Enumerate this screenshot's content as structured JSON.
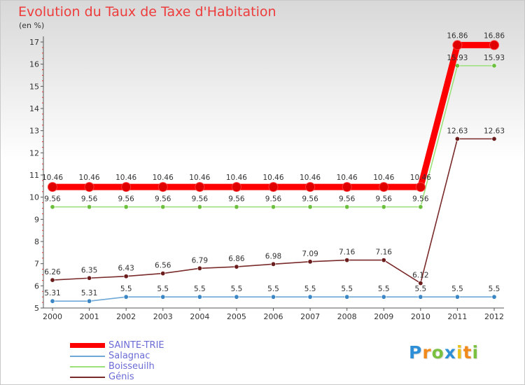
{
  "chart_data": {
    "type": "line",
    "title": "Evolution du Taux de Taxe d'Habitation",
    "subtitle": "(en %)",
    "xlabel": "",
    "ylabel": "",
    "ylim": [
      5,
      17
    ],
    "yticks": [
      "5",
      "6",
      "7",
      "8",
      "9",
      "10",
      "11",
      "12",
      "13",
      "14",
      "15",
      "16",
      "17"
    ],
    "categories": [
      "2000",
      "2001",
      "2002",
      "2003",
      "2004",
      "2005",
      "2006",
      "2007",
      "2008",
      "2009",
      "2010",
      "2011",
      "2012"
    ],
    "legend_position": "bottom-left",
    "series": [
      {
        "name": "SAINTE-TRIE",
        "color": "#ff0000",
        "point_color": "#e00000",
        "thick": true,
        "values": [
          10.46,
          10.46,
          10.46,
          10.46,
          10.46,
          10.46,
          10.46,
          10.46,
          10.46,
          10.46,
          10.46,
          16.86,
          16.86
        ],
        "labels": [
          "10.46",
          "10.46",
          "10.46",
          "10.46",
          "10.46",
          "10.46",
          "10.46",
          "10.46",
          "10.46",
          "10.46",
          "10.46",
          "16.86",
          "16.86"
        ]
      },
      {
        "name": "Salagnac",
        "color": "#6fa8d6",
        "point_color": "#3b86c5",
        "thick": false,
        "values": [
          5.31,
          5.31,
          5.5,
          5.5,
          5.5,
          5.5,
          5.5,
          5.5,
          5.5,
          5.5,
          5.5,
          5.5,
          5.5
        ],
        "labels": [
          "5.31",
          "5.31",
          "5.5",
          "5.5",
          "5.5",
          "5.5",
          "5.5",
          "5.5",
          "5.5",
          "5.5",
          "5.5",
          "5.5",
          "5.5"
        ]
      },
      {
        "name": "Boisseuilh",
        "color": "#9be07a",
        "point_color": "#6cc03e",
        "thick": false,
        "values": [
          9.56,
          9.56,
          9.56,
          9.56,
          9.56,
          9.56,
          9.56,
          9.56,
          9.56,
          9.56,
          9.56,
          15.93,
          15.93
        ],
        "labels": [
          "9.56",
          "9.56",
          "9.56",
          "9.56",
          "9.56",
          "9.56",
          "9.56",
          "9.56",
          "9.56",
          "9.56",
          "9.56",
          "15.93",
          "15.93"
        ]
      },
      {
        "name": "Génis",
        "color": "#7a2a2a",
        "point_color": "#6b1c1c",
        "thick": false,
        "values": [
          6.26,
          6.35,
          6.43,
          6.56,
          6.79,
          6.86,
          6.98,
          7.09,
          7.16,
          7.16,
          6.12,
          12.63,
          12.63
        ],
        "labels": [
          "6.26",
          "6.35",
          "6.43",
          "6.56",
          "6.79",
          "6.86",
          "6.98",
          "7.09",
          "7.16",
          "7.16",
          "6.12",
          "12.63",
          "12.63"
        ]
      }
    ]
  },
  "legend": {
    "items": [
      {
        "label": "SAINTE-TRIE",
        "color": "#ff0000",
        "text_color": "#6b6bd6"
      },
      {
        "label": "Salagnac",
        "color": "#6fa8d6",
        "text_color": "#6b6bd6"
      },
      {
        "label": "Boisseuilh",
        "color": "#9be07a",
        "text_color": "#6b6bd6"
      },
      {
        "label": "Génis",
        "color": "#7a2a2a",
        "text_color": "#6b6bd6"
      }
    ]
  },
  "logo": {
    "letters": [
      "P",
      "r",
      "o",
      "x",
      "i",
      "t",
      "i"
    ],
    "colors": [
      "#2f8fd6",
      "#f08a1c",
      "#7ac142",
      "#2f8fd6",
      "#e8c21a",
      "#f08a1c",
      "#7ac142"
    ]
  }
}
